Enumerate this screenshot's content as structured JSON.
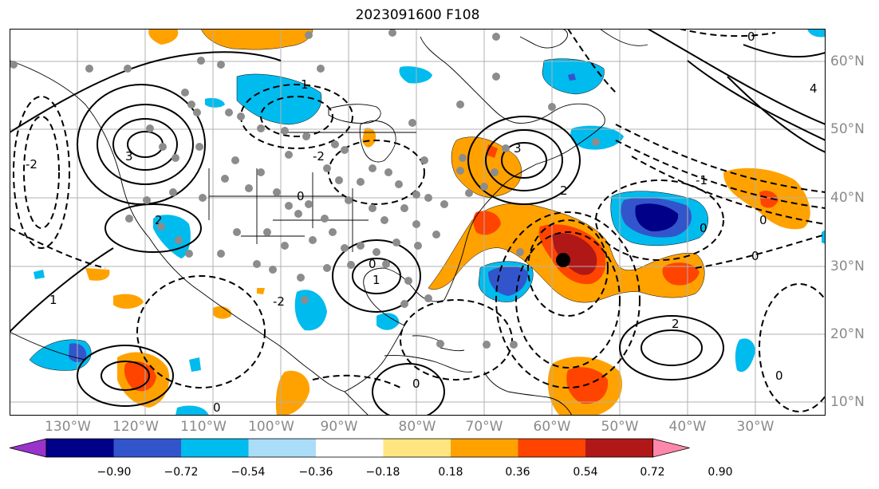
{
  "title": "2023091600 F108",
  "lon_labels": [
    "130°W",
    "120°W",
    "110°W",
    "100°W",
    "90°W",
    "80°W",
    "70°W",
    "60°W",
    "50°W",
    "40°W",
    "30°W"
  ],
  "lat_labels": [
    "60°N",
    "50°N",
    "40°N",
    "30°N",
    "20°N",
    "10°N"
  ],
  "contour_labels": [
    "-2",
    "-1",
    "0",
    "1",
    "2",
    "3",
    "4"
  ],
  "colorbar": {
    "ticks": [
      "−0.90",
      "−0.72",
      "−0.54",
      "−0.36",
      "−0.18",
      "0.18",
      "0.36",
      "0.54",
      "0.72",
      "0.90"
    ],
    "colors": [
      "#9933cc",
      "#000088",
      "#3355cc",
      "#00bbee",
      "#aaddf8",
      "#ffffff",
      "#ffe680",
      "#ffa200",
      "#ff4400",
      "#b01818",
      "#ff88aa"
    ]
  },
  "colors": {
    "land_outline": "#000000",
    "grid": "#b0b0b0",
    "station_dot": "#8c8c8c",
    "marker": "#000000"
  }
}
